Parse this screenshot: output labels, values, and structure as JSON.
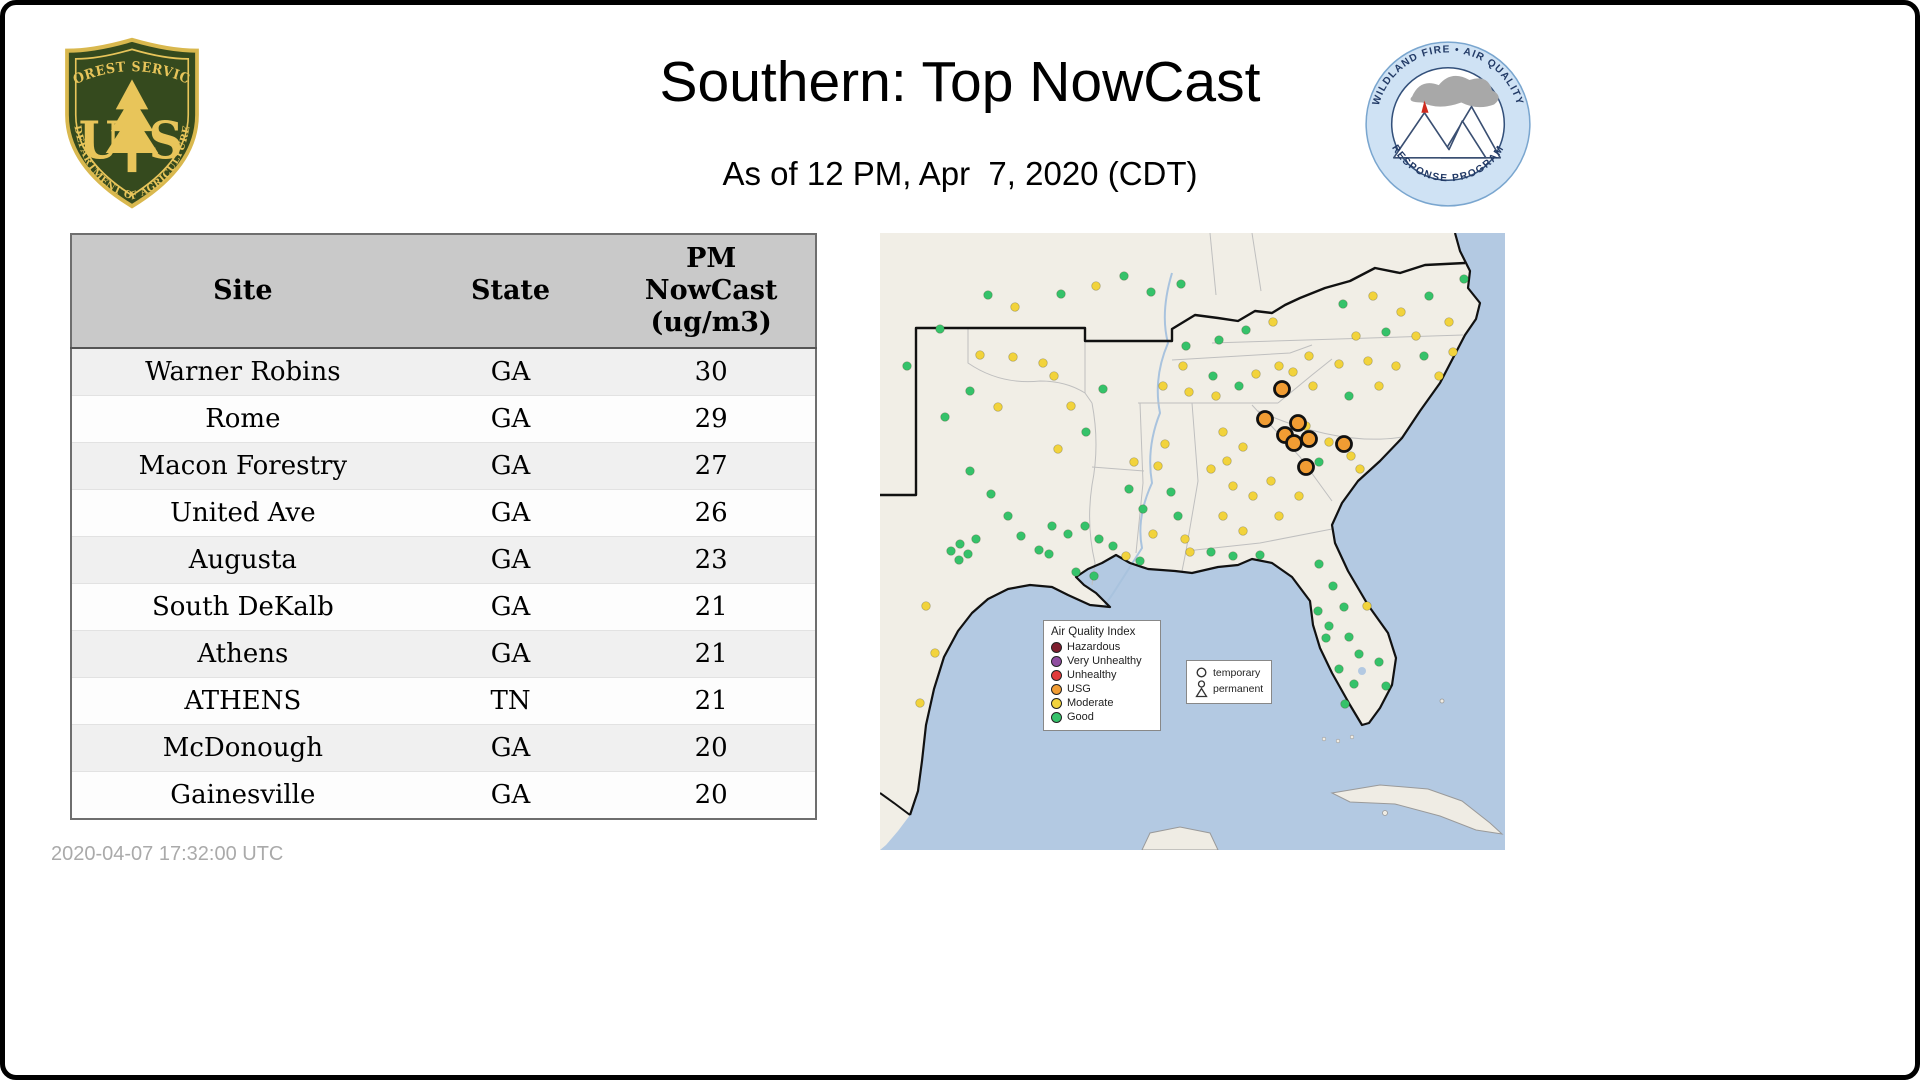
{
  "page": {
    "title": "Southern: Top NowCast",
    "subtitle": "As of 12 PM, Apr  7, 2020 (CDT)",
    "timestamp": "2020-04-07 17:32:00 UTC"
  },
  "logos": {
    "forest_service": {
      "arc_top": "FOREST SERVICE",
      "monogram_left": "U",
      "monogram_right": "S",
      "arc_bottom": "DEPARTMENT OF AGRICULTURE"
    },
    "air_program": {
      "arc_top": "WILDLAND FIRE • AIR QUALITY",
      "arc_bottom": "RESPONSE PROGRAM"
    }
  },
  "table": {
    "headers": {
      "site": "Site",
      "state": "State",
      "pm_lines": [
        "PM",
        "NowCast",
        "(ug/m3)"
      ]
    },
    "rows": [
      [
        "Warner Robins",
        "GA",
        30
      ],
      [
        "Rome",
        "GA",
        29
      ],
      [
        "Macon Forestry",
        "GA",
        27
      ],
      [
        "United Ave",
        "GA",
        26
      ],
      [
        "Augusta",
        "GA",
        23
      ],
      [
        "South DeKalb",
        "GA",
        21
      ],
      [
        "Athens",
        "GA",
        21
      ],
      [
        "ATHENS",
        "TN",
        21
      ],
      [
        "McDonough",
        "GA",
        20
      ],
      [
        "Gainesville",
        "GA",
        20
      ]
    ]
  },
  "map": {
    "legend_title": "Air Quality Index",
    "legend_items": [
      {
        "label": "Hazardous",
        "color": "#7e1e2e"
      },
      {
        "label": "Very Unhealthy",
        "color": "#8f4d9f"
      },
      {
        "label": "Unhealthy",
        "color": "#e03a3a"
      },
      {
        "label": "USG",
        "color": "#f09c33"
      },
      {
        "label": "Moderate",
        "color": "#f2d33c"
      },
      {
        "label": "Good",
        "color": "#35c26a"
      }
    ],
    "marker_legend": [
      {
        "label": "temporary",
        "shape": "circle"
      },
      {
        "label": "permanent",
        "shape": "person"
      }
    ],
    "status_colors": {
      "g": "#35c26a",
      "m": "#f2d33c",
      "u": "#f09c33"
    },
    "points": [
      [
        60,
        96,
        "g"
      ],
      [
        108,
        62,
        "g"
      ],
      [
        135,
        74,
        "m"
      ],
      [
        181,
        61,
        "g"
      ],
      [
        216,
        53,
        "m"
      ],
      [
        244,
        43,
        "g"
      ],
      [
        271,
        59,
        "g"
      ],
      [
        301,
        51,
        "g"
      ],
      [
        100,
        122,
        "m"
      ],
      [
        133,
        124,
        "m"
      ],
      [
        163,
        130,
        "m"
      ],
      [
        27,
        133,
        "g"
      ],
      [
        90,
        158,
        "g"
      ],
      [
        65,
        184,
        "g"
      ],
      [
        118,
        174,
        "m"
      ],
      [
        178,
        216,
        "m"
      ],
      [
        90,
        238,
        "g"
      ],
      [
        111,
        261,
        "g"
      ],
      [
        128,
        283,
        "g"
      ],
      [
        96,
        306,
        "g"
      ],
      [
        71,
        318,
        "g"
      ],
      [
        79,
        327,
        "g"
      ],
      [
        88,
        321,
        "g"
      ],
      [
        80,
        311,
        "g"
      ],
      [
        141,
        303,
        "g"
      ],
      [
        159,
        317,
        "g"
      ],
      [
        46,
        373,
        "m"
      ],
      [
        55,
        420,
        "m"
      ],
      [
        40,
        470,
        "m"
      ],
      [
        172,
        293,
        "g"
      ],
      [
        188,
        301,
        "g"
      ],
      [
        205,
        293,
        "g"
      ],
      [
        219,
        306,
        "g"
      ],
      [
        233,
        313,
        "g"
      ],
      [
        196,
        339,
        "g"
      ],
      [
        214,
        343,
        "g"
      ],
      [
        169,
        321,
        "g"
      ],
      [
        174,
        143,
        "m"
      ],
      [
        191,
        173,
        "m"
      ],
      [
        206,
        199,
        "g"
      ],
      [
        223,
        156,
        "g"
      ],
      [
        254,
        229,
        "m"
      ],
      [
        249,
        256,
        "g"
      ],
      [
        263,
        276,
        "g"
      ],
      [
        273,
        301,
        "m"
      ],
      [
        278,
        233,
        "m"
      ],
      [
        291,
        259,
        "g"
      ],
      [
        298,
        283,
        "g"
      ],
      [
        305,
        306,
        "m"
      ],
      [
        285,
        211,
        "m"
      ],
      [
        246,
        323,
        "m"
      ],
      [
        260,
        328,
        "g"
      ],
      [
        283,
        153,
        "m"
      ],
      [
        309,
        159,
        "m"
      ],
      [
        336,
        163,
        "m"
      ],
      [
        359,
        153,
        "g"
      ],
      [
        303,
        133,
        "m"
      ],
      [
        333,
        143,
        "g"
      ],
      [
        376,
        141,
        "m"
      ],
      [
        399,
        133,
        "m"
      ],
      [
        306,
        113,
        "g"
      ],
      [
        339,
        107,
        "g"
      ],
      [
        366,
        97,
        "g"
      ],
      [
        393,
        89,
        "m"
      ],
      [
        463,
        71,
        "g"
      ],
      [
        493,
        63,
        "m"
      ],
      [
        521,
        79,
        "m"
      ],
      [
        549,
        63,
        "g"
      ],
      [
        569,
        89,
        "m"
      ],
      [
        506,
        99,
        "g"
      ],
      [
        476,
        103,
        "m"
      ],
      [
        536,
        103,
        "m"
      ],
      [
        584,
        46,
        "g"
      ],
      [
        429,
        123,
        "m"
      ],
      [
        459,
        131,
        "m"
      ],
      [
        488,
        128,
        "m"
      ],
      [
        516,
        133,
        "m"
      ],
      [
        544,
        123,
        "g"
      ],
      [
        559,
        143,
        "m"
      ],
      [
        499,
        153,
        "m"
      ],
      [
        469,
        163,
        "g"
      ],
      [
        433,
        153,
        "m"
      ],
      [
        413,
        139,
        "m"
      ],
      [
        573,
        119,
        "m"
      ],
      [
        426,
        193,
        "m"
      ],
      [
        449,
        209,
        "m"
      ],
      [
        471,
        223,
        "m"
      ],
      [
        439,
        229,
        "g"
      ],
      [
        416,
        213,
        "m"
      ],
      [
        480,
        236,
        "m"
      ],
      [
        343,
        199,
        "m"
      ],
      [
        363,
        214,
        "m"
      ],
      [
        331,
        236,
        "m"
      ],
      [
        353,
        253,
        "m"
      ],
      [
        373,
        263,
        "m"
      ],
      [
        391,
        248,
        "m"
      ],
      [
        343,
        283,
        "m"
      ],
      [
        363,
        298,
        "m"
      ],
      [
        399,
        283,
        "m"
      ],
      [
        419,
        263,
        "m"
      ],
      [
        347,
        228,
        "m"
      ],
      [
        402,
        156,
        "u"
      ],
      [
        385,
        186,
        "u"
      ],
      [
        418,
        190,
        "u"
      ],
      [
        405,
        202,
        "u"
      ],
      [
        414,
        210,
        "u"
      ],
      [
        429,
        206,
        "u"
      ],
      [
        464,
        211,
        "u"
      ],
      [
        426,
        234,
        "u"
      ],
      [
        331,
        319,
        "g"
      ],
      [
        353,
        323,
        "g"
      ],
      [
        310,
        319,
        "m"
      ],
      [
        380,
        322,
        "g"
      ],
      [
        439,
        331,
        "g"
      ],
      [
        453,
        353,
        "g"
      ],
      [
        464,
        374,
        "g"
      ],
      [
        449,
        393,
        "g"
      ],
      [
        469,
        404,
        "g"
      ],
      [
        479,
        421,
        "g"
      ],
      [
        459,
        436,
        "g"
      ],
      [
        474,
        451,
        "g"
      ],
      [
        465,
        471,
        "g"
      ],
      [
        446,
        405,
        "g"
      ],
      [
        438,
        378,
        "g"
      ],
      [
        499,
        429,
        "g"
      ],
      [
        487,
        373,
        "m"
      ],
      [
        506,
        453,
        "g"
      ]
    ]
  },
  "chart_data": {
    "type": "table",
    "title": "Southern: Top NowCast",
    "subtitle": "As of 12 PM, Apr  7, 2020 (CDT)",
    "columns": [
      "Site",
      "State",
      "PM NowCast (ug/m3)"
    ],
    "rows": [
      [
        "Warner Robins",
        "GA",
        30
      ],
      [
        "Rome",
        "GA",
        29
      ],
      [
        "Macon Forestry",
        "GA",
        27
      ],
      [
        "United Ave",
        "GA",
        26
      ],
      [
        "Augusta",
        "GA",
        23
      ],
      [
        "South DeKalb",
        "GA",
        21
      ],
      [
        "Athens",
        "GA",
        21
      ],
      [
        "ATHENS",
        "TN",
        21
      ],
      [
        "McDonough",
        "GA",
        20
      ],
      [
        "Gainesville",
        "GA",
        20
      ]
    ]
  }
}
